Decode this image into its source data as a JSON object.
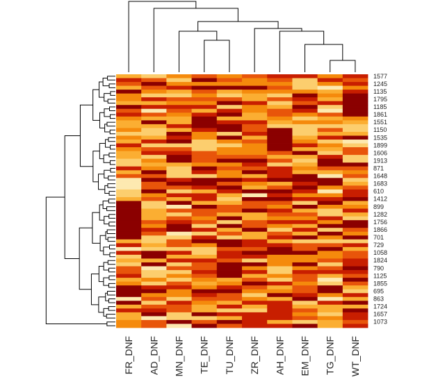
{
  "chart_data": {
    "type": "heatmap",
    "title": "",
    "xlabel": "",
    "ylabel": "",
    "colormap": "heat",
    "color_scale": [
      "#8b0000",
      "#c81e00",
      "#e8550a",
      "#f58a0c",
      "#fbae32",
      "#fcce6e",
      "#fde9b0"
    ],
    "value_range": [
      0,
      1
    ],
    "columns": [
      "FR_DNF",
      "AD_DNF",
      "MN_DNF",
      "TE_DNF",
      "TU_DNF",
      "ZR_DNF",
      "AH_DNF",
      "EM_DNF",
      "TG_DNF",
      "WT_DNF"
    ],
    "row_labels_shown": [
      "1577",
      "1245",
      "1135",
      "1795",
      "1185",
      "1861",
      "1551",
      "1150",
      "1535",
      "1899",
      "1606",
      "1913",
      "871",
      "1648",
      "1683",
      "610",
      "1412",
      "899",
      "1282",
      "1756",
      "1866",
      "701",
      "729",
      "1058",
      "1824",
      "790",
      "1125",
      "1855",
      "695",
      "863",
      "1724",
      "1657",
      "1073"
    ],
    "n_rows": 66,
    "seed": 20240611,
    "column_dendrogram": "(FR_DNF,(AD_DNF,((MN_DNF,(TE_DNF,TU_DNF)),(ZR_DNF,(AH_DNF,(EM_DNF,(TG_DNF,WT_DNF)))))))",
    "row_dendrogram": "hierarchical clustering, 66 leaves"
  }
}
